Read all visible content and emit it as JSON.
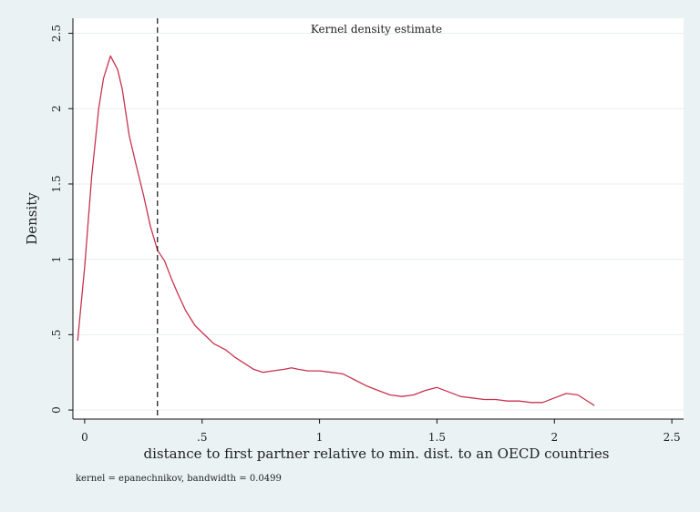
{
  "chart_data": {
    "type": "line",
    "title": "Kernel density estimate",
    "xlabel": "distance to first partner relative to min. dist. to an OECD countries",
    "ylabel": "Density",
    "note": "kernel = epanechnikov, bandwidth = 0.0499",
    "xlim": [
      -0.05,
      2.55
    ],
    "ylim": [
      -0.06,
      2.6
    ],
    "grid": true,
    "x_ticks": [
      0,
      0.5,
      1,
      1.5,
      2,
      2.5
    ],
    "x_tick_labels": [
      "0",
      ".5",
      "1",
      "1.5",
      "2",
      "2.5"
    ],
    "y_ticks": [
      0,
      0.5,
      1,
      1.5,
      2,
      2.5
    ],
    "y_tick_labels": [
      "0",
      ".5",
      "1",
      "1.5",
      "2",
      "2.5"
    ],
    "reference_line": {
      "x": 0.31,
      "style": "dashed"
    },
    "series": [
      {
        "x": [
          -0.03,
          0.0,
          0.03,
          0.06,
          0.08,
          0.11,
          0.14,
          0.16,
          0.19,
          0.22,
          0.25,
          0.28,
          0.31,
          0.34,
          0.37,
          0.4,
          0.43,
          0.47,
          0.51,
          0.55,
          0.6,
          0.64,
          0.68,
          0.72,
          0.76,
          0.8,
          0.85,
          0.88,
          0.91,
          0.95,
          1.0,
          1.05,
          1.1,
          1.15,
          1.2,
          1.25,
          1.3,
          1.35,
          1.4,
          1.45,
          1.5,
          1.55,
          1.6,
          1.65,
          1.7,
          1.75,
          1.8,
          1.85,
          1.9,
          1.95,
          2.0,
          2.05,
          2.1,
          2.13,
          2.17
        ],
        "y": [
          0.46,
          0.95,
          1.55,
          2.0,
          2.2,
          2.35,
          2.26,
          2.13,
          1.82,
          1.62,
          1.43,
          1.22,
          1.06,
          0.99,
          0.87,
          0.76,
          0.66,
          0.56,
          0.5,
          0.44,
          0.4,
          0.35,
          0.31,
          0.27,
          0.25,
          0.26,
          0.27,
          0.28,
          0.27,
          0.26,
          0.26,
          0.25,
          0.24,
          0.2,
          0.16,
          0.13,
          0.1,
          0.09,
          0.1,
          0.13,
          0.15,
          0.12,
          0.09,
          0.08,
          0.07,
          0.07,
          0.06,
          0.06,
          0.05,
          0.05,
          0.08,
          0.11,
          0.1,
          0.07,
          0.03
        ],
        "color": "#c8334e"
      }
    ]
  },
  "colors": {
    "background": "#eaf2f3",
    "plot_region": "#ffffff",
    "grid": "#e9eef0",
    "line": "#c8334e",
    "axis": "#111111"
  }
}
